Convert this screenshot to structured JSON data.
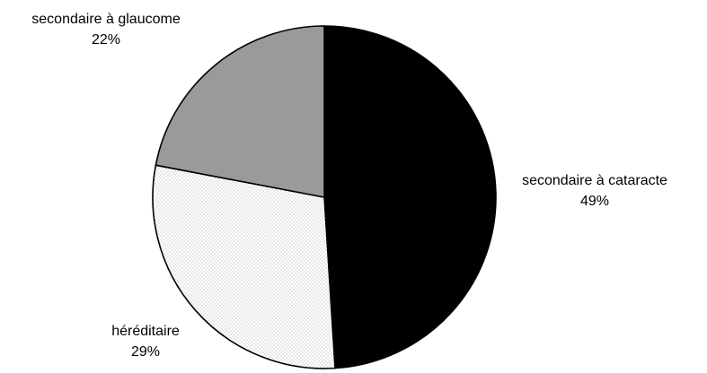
{
  "chart_data": {
    "type": "pie",
    "title": "",
    "slices": [
      {
        "label": "secondaire à cataracte",
        "value": 49,
        "value_label": "49%",
        "fill": "#000000",
        "pattern": "solid"
      },
      {
        "label": "héréditaire",
        "value": 29,
        "value_label": "29%",
        "fill": "#ffffff",
        "pattern": "dots"
      },
      {
        "label": "secondaire à glaucome",
        "value": 22,
        "value_label": "22%",
        "fill": "#9a9a9a",
        "pattern": "solid"
      }
    ],
    "start_angle_deg": 0,
    "direction": "clockwise",
    "legend": "none"
  }
}
